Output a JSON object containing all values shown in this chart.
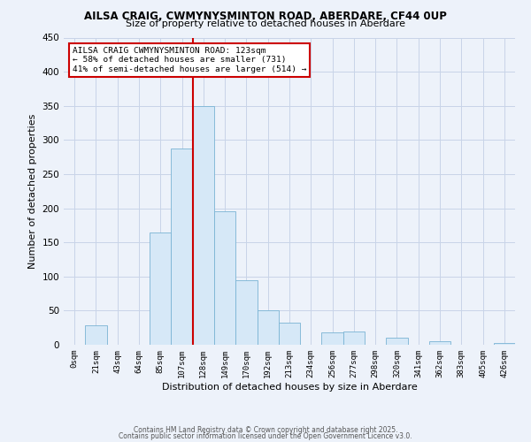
{
  "title": "AILSA CRAIG, CWMYNYSMINTON ROAD, ABERDARE, CF44 0UP",
  "subtitle": "Size of property relative to detached houses in Aberdare",
  "xlabel": "Distribution of detached houses by size in Aberdare",
  "ylabel": "Number of detached properties",
  "bar_labels": [
    "0sqm",
    "21sqm",
    "43sqm",
    "64sqm",
    "85sqm",
    "107sqm",
    "128sqm",
    "149sqm",
    "170sqm",
    "192sqm",
    "213sqm",
    "234sqm",
    "256sqm",
    "277sqm",
    "298sqm",
    "320sqm",
    "341sqm",
    "362sqm",
    "383sqm",
    "405sqm",
    "426sqm"
  ],
  "bar_values": [
    0,
    29,
    0,
    0,
    165,
    287,
    350,
    195,
    95,
    50,
    33,
    0,
    18,
    19,
    0,
    10,
    0,
    5,
    0,
    0,
    3
  ],
  "bar_color": "#d6e8f7",
  "bar_edge_color": "#7ab3d4",
  "vline_x": 5.5,
  "vline_color": "#cc0000",
  "ylim": [
    0,
    450
  ],
  "yticks": [
    0,
    50,
    100,
    150,
    200,
    250,
    300,
    350,
    400,
    450
  ],
  "annotation_title": "AILSA CRAIG CWMYNYSMINTON ROAD: 123sqm",
  "annotation_line2": "← 58% of detached houses are smaller (731)",
  "annotation_line3": "41% of semi-detached houses are larger (514) →",
  "annotation_box_color": "#ffffff",
  "annotation_box_edge": "#cc0000",
  "footer1": "Contains HM Land Registry data © Crown copyright and database right 2025.",
  "footer2": "Contains public sector information licensed under the Open Government Licence v3.0.",
  "grid_color": "#c8d4e8",
  "background_color": "#edf2fa"
}
